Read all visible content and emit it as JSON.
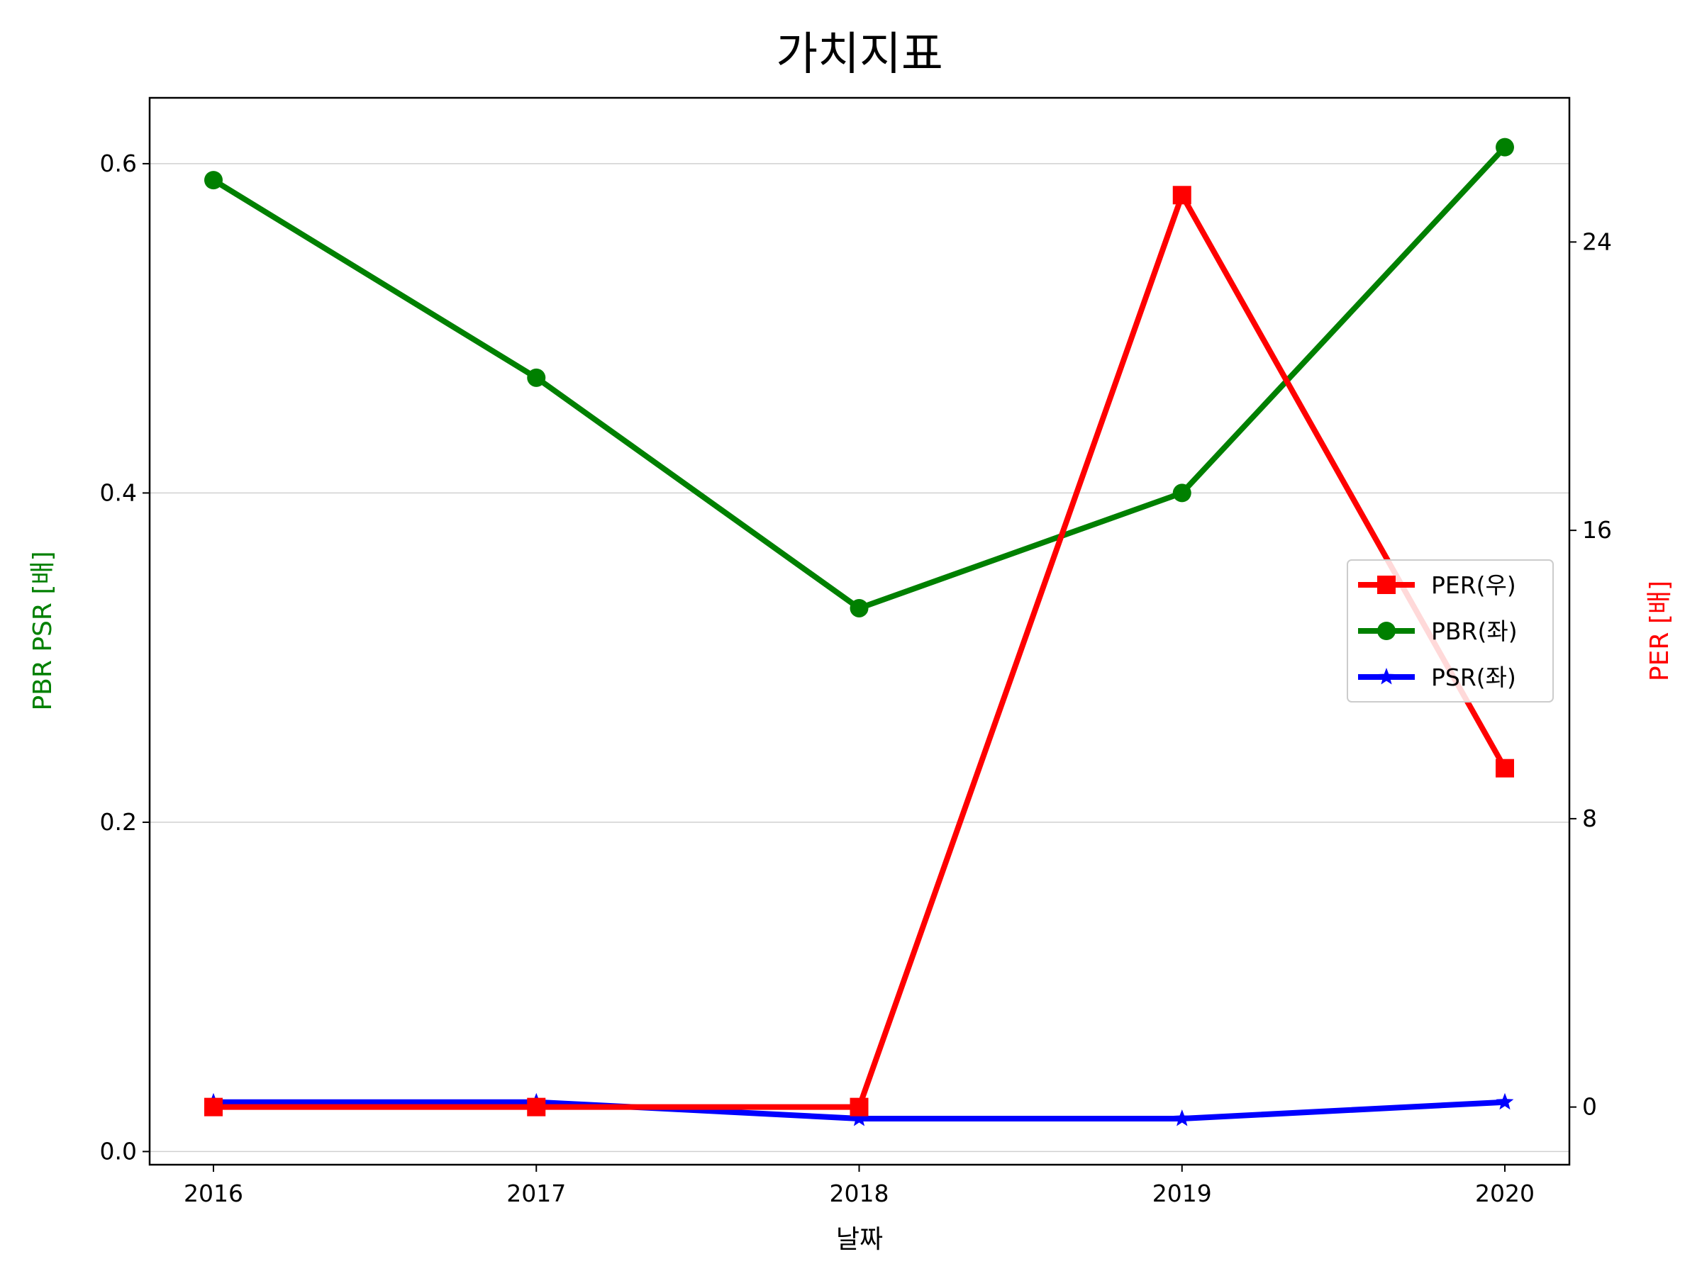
{
  "chart_data": {
    "type": "line",
    "title": "가치지표",
    "xlabel": "날짜",
    "ylabel_left": "PBR PSR [배]",
    "ylabel_right": "PER [배]",
    "x": [
      "2016",
      "2017",
      "2018",
      "2019",
      "2020"
    ],
    "ylim_left": [
      -0.008,
      0.64
    ],
    "ylim_right": [
      -1.6,
      28.0
    ],
    "left_ticks": [
      "0.0",
      "0.2",
      "0.4",
      "0.6"
    ],
    "right_ticks": [
      "0",
      "8",
      "16",
      "24"
    ],
    "grid": "horizontal",
    "legend_position": "center-right",
    "series": [
      {
        "name": "PER(우)",
        "axis": "right",
        "color": "#ff0000",
        "marker": "square",
        "values": [
          0,
          0,
          0,
          25.3,
          9.4
        ]
      },
      {
        "name": "PBR(좌)",
        "axis": "left",
        "color": "#008000",
        "marker": "circle",
        "values": [
          0.59,
          0.47,
          0.33,
          0.4,
          0.61
        ]
      },
      {
        "name": "PSR(좌)",
        "axis": "left",
        "color": "#0000ff",
        "marker": "star",
        "values": [
          0.03,
          0.03,
          0.02,
          0.02,
          0.03
        ]
      }
    ],
    "left_label_color": "#008000",
    "right_label_color": "#ff0000"
  }
}
